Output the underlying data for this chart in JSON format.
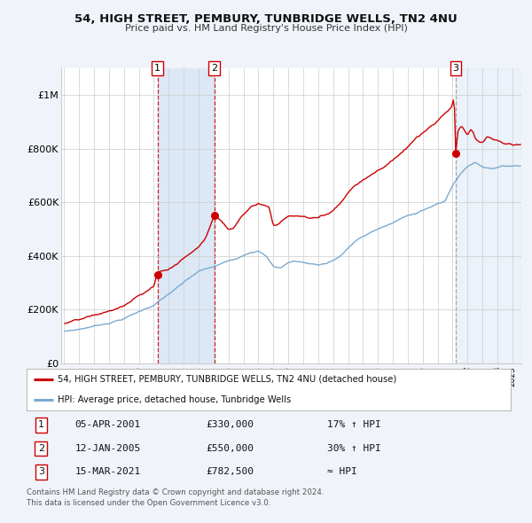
{
  "title": "54, HIGH STREET, PEMBURY, TUNBRIDGE WELLS, TN2 4NU",
  "subtitle": "Price paid vs. HM Land Registry's House Price Index (HPI)",
  "legend_line1": "54, HIGH STREET, PEMBURY, TUNBRIDGE WELLS, TN2 4NU (detached house)",
  "legend_line2": "HPI: Average price, detached house, Tunbridge Wells",
  "footer1": "Contains HM Land Registry data © Crown copyright and database right 2024.",
  "footer2": "This data is licensed under the Open Government Licence v3.0.",
  "sales": [
    {
      "num": 1,
      "date_num": 2001.25,
      "price": 330000,
      "label": "05-APR-2001",
      "price_label": "£330,000",
      "hpi_label": "17% ↑ HPI"
    },
    {
      "num": 2,
      "date_num": 2005.04,
      "price": 550000,
      "label": "12-JAN-2005",
      "price_label": "£550,000",
      "hpi_label": "30% ↑ HPI"
    },
    {
      "num": 3,
      "date_num": 2021.21,
      "price": 782500,
      "label": "15-MAR-2021",
      "price_label": "£782,500",
      "hpi_label": "≈ HPI"
    }
  ],
  "red_line_color": "#cc0000",
  "blue_line_color": "#7aaad0",
  "bg_color": "#f0f4fa",
  "plot_bg_color": "#ffffff",
  "grid_color": "#cccccc",
  "sale_shade_color": "#dce8f5",
  "vline_color": "#cc0000",
  "vline3_color": "#999999",
  "ylim": [
    0,
    1100000
  ],
  "yticks": [
    0,
    200000,
    400000,
    600000,
    800000,
    1000000
  ],
  "ytick_labels": [
    "£0",
    "£200K",
    "£400K",
    "£600K",
    "£800K",
    "£1M"
  ],
  "xstart_year": 1995,
  "xend_year": 2025
}
